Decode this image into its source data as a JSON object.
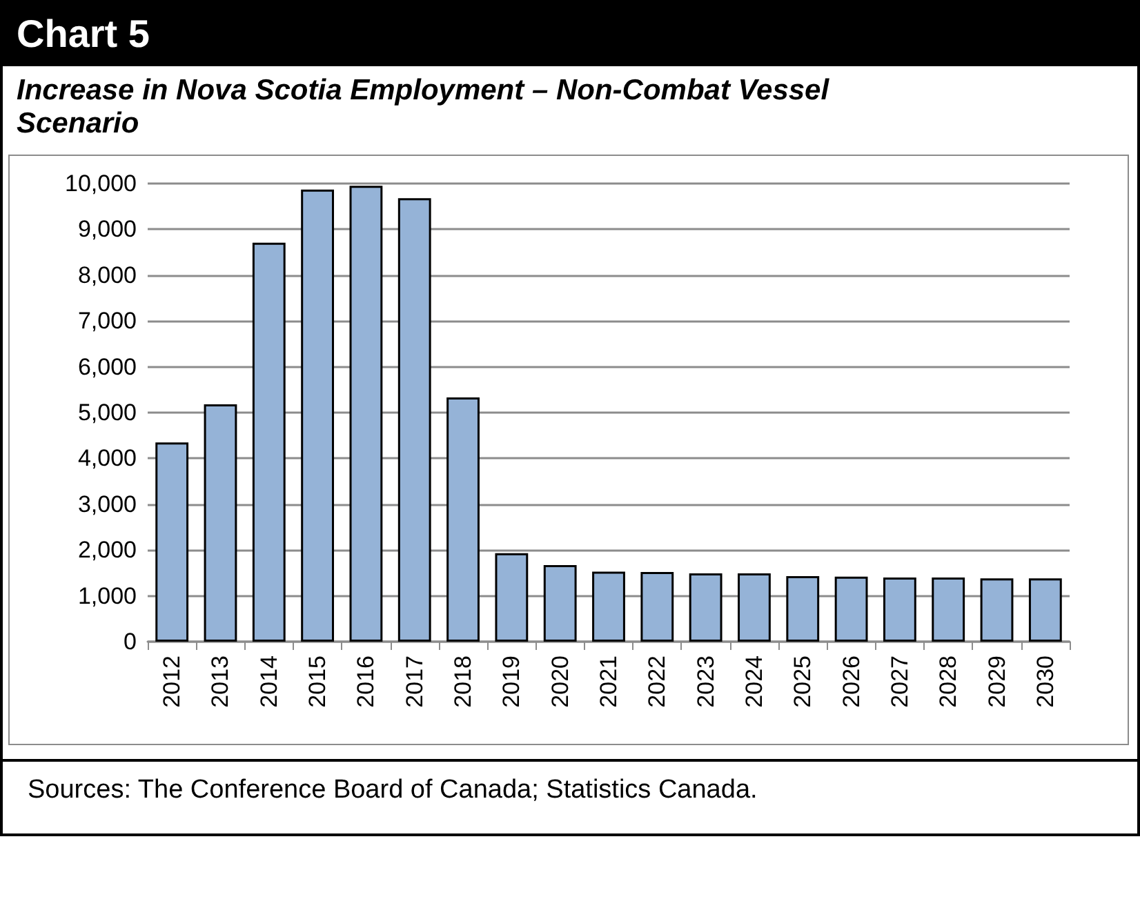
{
  "chart_data": {
    "type": "bar",
    "title": "Chart 5",
    "subtitle": "Increase in Nova Scotia Employment – Non-Combat Vessel Scenario",
    "categories": [
      "2012",
      "2013",
      "2014",
      "2015",
      "2016",
      "2017",
      "2018",
      "2019",
      "2020",
      "2021",
      "2022",
      "2023",
      "2024",
      "2025",
      "2026",
      "2027",
      "2028",
      "2029",
      "2030"
    ],
    "values": [
      4350,
      5180,
      8710,
      9870,
      9950,
      9680,
      5330,
      1930,
      1670,
      1530,
      1520,
      1490,
      1490,
      1430,
      1420,
      1400,
      1400,
      1380,
      1380
    ],
    "color": "#95b3d7",
    "ylim": [
      0,
      10000
    ],
    "yticks": [
      0,
      {
        "value": 1000,
        "label": "1,000"
      },
      {
        "value": 2000,
        "label": "2,000"
      },
      {
        "value": 3000,
        "label": "3,000"
      },
      {
        "value": 4000,
        "label": "4,000"
      },
      {
        "value": 5000,
        "label": "5,000"
      },
      {
        "value": 6000,
        "label": "6,000"
      },
      {
        "value": 7000,
        "label": "7,000"
      },
      {
        "value": 8000,
        "label": "8,000"
      },
      {
        "value": 9000,
        "label": "9,000"
      },
      {
        "value": 10000,
        "label": "10,000"
      }
    ],
    "grid": "y",
    "annotations": [
      "Sources: The Conference Board of Canada; Statistics Canada."
    ]
  }
}
